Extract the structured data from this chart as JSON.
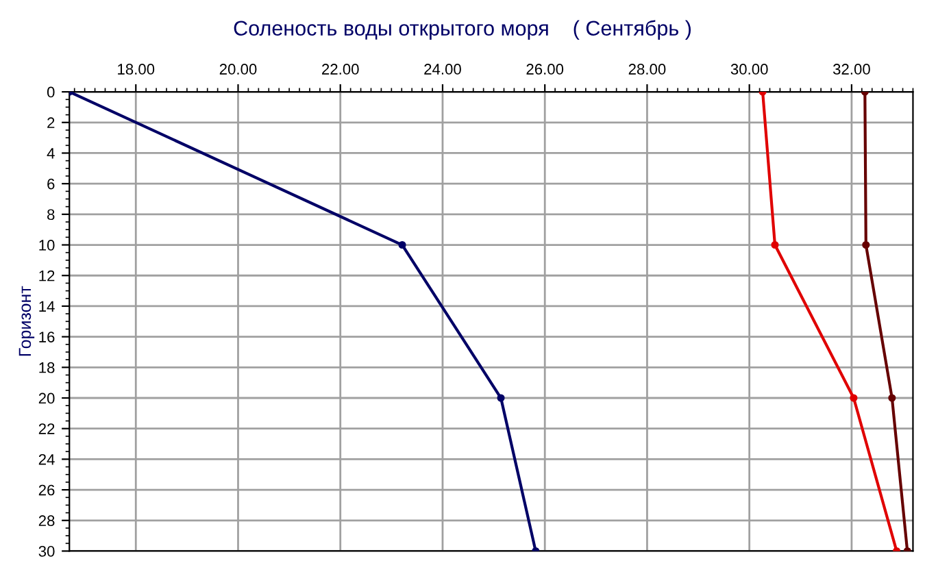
{
  "chart_data": {
    "type": "line",
    "title": "Соленость воды открытого моря    ( Сентябрь )",
    "ylabel": "Горизонт",
    "xlim": [
      16.7,
      33.2
    ],
    "xticks": [
      {
        "value": 18,
        "label": "18.00"
      },
      {
        "value": 20,
        "label": "20.00"
      },
      {
        "value": 22,
        "label": "22.00"
      },
      {
        "value": 24,
        "label": "24.00"
      },
      {
        "value": 26,
        "label": "26.00"
      },
      {
        "value": 28,
        "label": "28.00"
      },
      {
        "value": 30,
        "label": "30.00"
      },
      {
        "value": 32,
        "label": "32.00"
      }
    ],
    "ylim": [
      30,
      0
    ],
    "yticks": [
      0,
      2,
      4,
      6,
      8,
      10,
      12,
      14,
      16,
      18,
      20,
      22,
      24,
      26,
      28,
      30
    ],
    "grid": true,
    "marker": "circle",
    "line_style": "solid",
    "series": [
      {
        "color": "#000066",
        "x": [
          16.7,
          23.21,
          25.14,
          25.82
        ],
        "values": [
          0,
          10,
          20,
          30
        ]
      },
      {
        "color": "#e00000",
        "x": [
          30.26,
          30.5,
          32.04,
          32.88
        ],
        "values": [
          0,
          10,
          20,
          30
        ]
      },
      {
        "color": "#660000",
        "x": [
          32.26,
          32.28,
          32.79,
          33.09
        ],
        "values": [
          0,
          10,
          20,
          30
        ]
      }
    ]
  }
}
